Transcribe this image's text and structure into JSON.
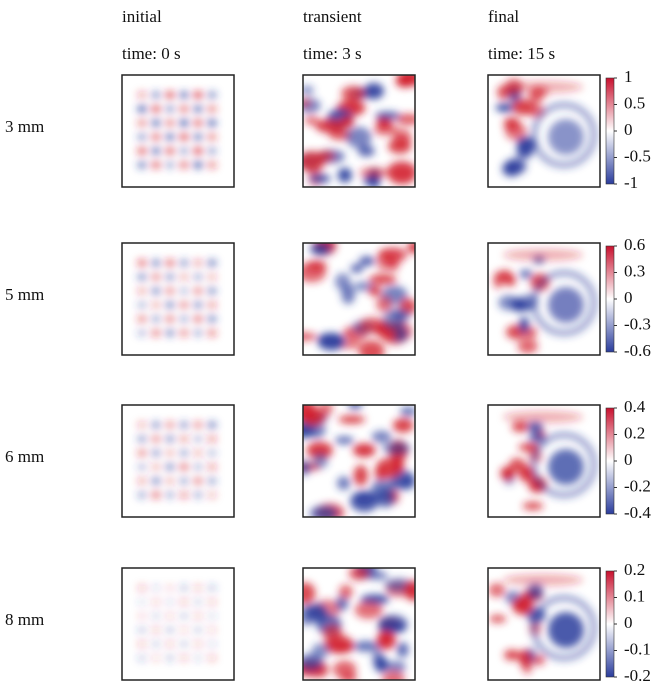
{
  "columns": [
    {
      "label": "initial",
      "time": "time: 0 s"
    },
    {
      "label": "transient",
      "time": "time: 3 s"
    },
    {
      "label": "final",
      "time": "time: 15 s"
    }
  ],
  "rows": [
    {
      "label": "3 mm",
      "colorbar": {
        "lim": [
          -1,
          1
        ],
        "ticks": [
          1,
          0.5,
          0,
          -0.5,
          -1
        ]
      }
    },
    {
      "label": "5 mm",
      "colorbar": {
        "lim": [
          -0.6,
          0.6
        ],
        "ticks": [
          0.6,
          0.3,
          0,
          -0.3,
          -0.6
        ]
      }
    },
    {
      "label": "6 mm",
      "colorbar": {
        "lim": [
          -0.4,
          0.4
        ],
        "ticks": [
          0.4,
          0.2,
          0,
          -0.2,
          -0.4
        ]
      }
    },
    {
      "label": "8 mm",
      "colorbar": {
        "lim": [
          -0.2,
          0.2
        ],
        "ticks": [
          0.2,
          0.1,
          0,
          -0.1,
          -0.2
        ]
      }
    }
  ]
}
